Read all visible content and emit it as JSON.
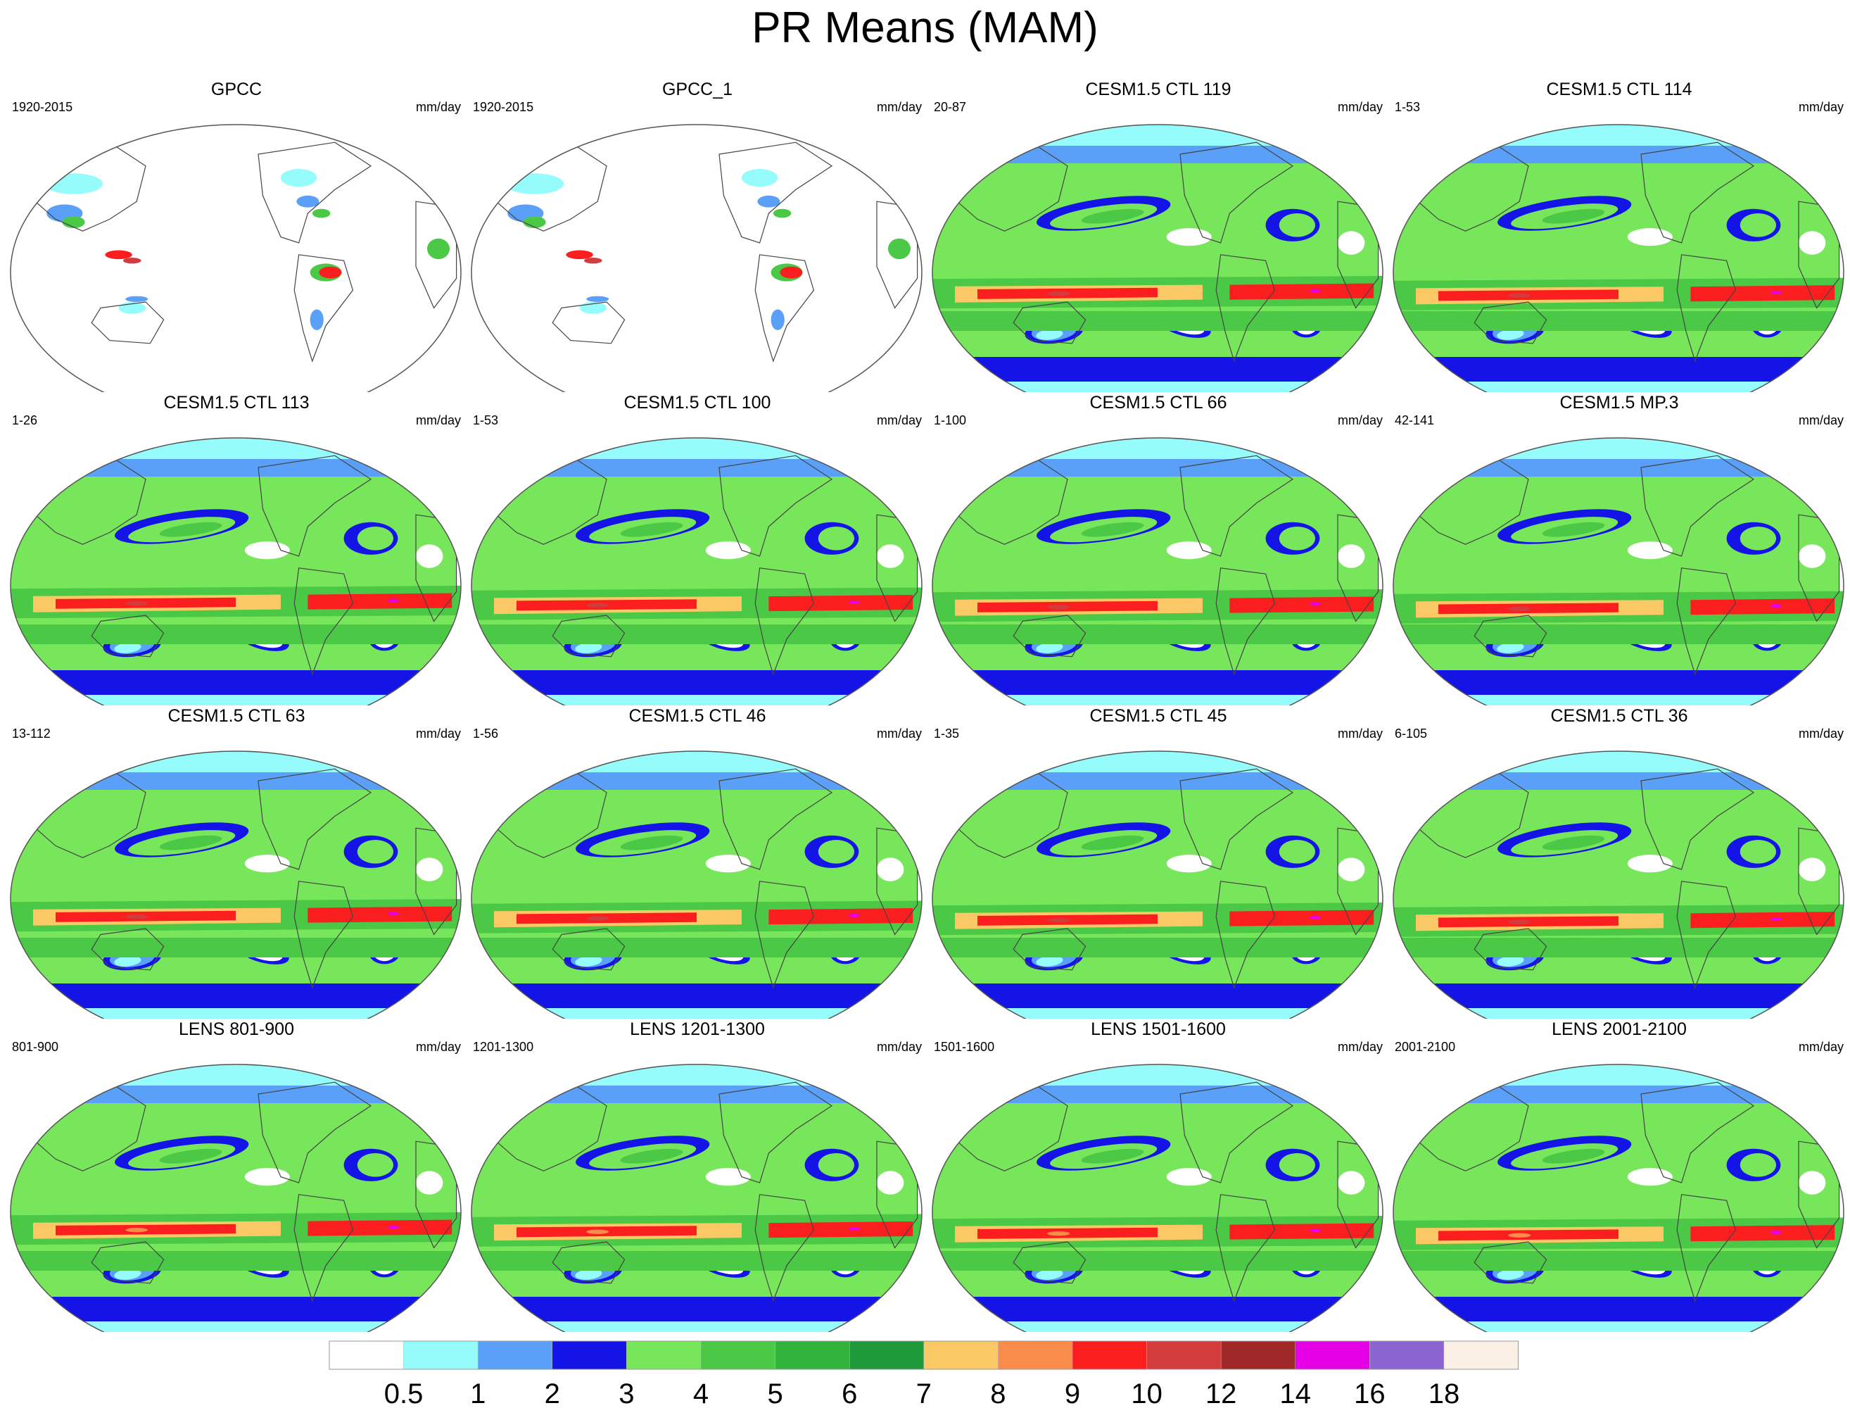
{
  "title": "PR Means (MAM)",
  "panels": [
    {
      "title": "GPCC",
      "years": "1920-2015",
      "units": "mm/day",
      "kind": "obs"
    },
    {
      "title": "GPCC_1",
      "years": "1920-2015",
      "units": "mm/day",
      "kind": "obs"
    },
    {
      "title": "CESM1.5 CTL 119",
      "years": "20-87",
      "units": "mm/day",
      "kind": "model"
    },
    {
      "title": "CESM1.5 CTL 114",
      "years": "1-53",
      "units": "mm/day",
      "kind": "model"
    },
    {
      "title": "CESM1.5 CTL 113",
      "years": "1-26",
      "units": "mm/day",
      "kind": "model"
    },
    {
      "title": "CESM1.5 CTL 100",
      "years": "1-53",
      "units": "mm/day",
      "kind": "model"
    },
    {
      "title": "CESM1.5 CTL 66",
      "years": "1-100",
      "units": "mm/day",
      "kind": "model"
    },
    {
      "title": "CESM1.5 MP.3",
      "years": "42-141",
      "units": "mm/day",
      "kind": "model"
    },
    {
      "title": "CESM1.5 CTL 63",
      "years": "13-112",
      "units": "mm/day",
      "kind": "model"
    },
    {
      "title": "CESM1.5 CTL 46",
      "years": "1-56",
      "units": "mm/day",
      "kind": "model"
    },
    {
      "title": "CESM1.5 CTL 45",
      "years": "1-35",
      "units": "mm/day",
      "kind": "model"
    },
    {
      "title": "CESM1.5 CTL 36",
      "years": "6-105",
      "units": "mm/day",
      "kind": "model"
    },
    {
      "title": "LENS 801-900",
      "years": "801-900",
      "units": "mm/day",
      "kind": "lens"
    },
    {
      "title": "LENS 1201-1300",
      "years": "1201-1300",
      "units": "mm/day",
      "kind": "lens"
    },
    {
      "title": "LENS 1501-1600",
      "years": "1501-1600",
      "units": "mm/day",
      "kind": "lens"
    },
    {
      "title": "LENS 2001-2100",
      "years": "2001-2100",
      "units": "mm/day",
      "kind": "lens"
    }
  ],
  "colorbar": {
    "colors": [
      "#ffffff",
      "#96fbfb",
      "#5aa0f8",
      "#1414e6",
      "#78e65a",
      "#4bc846",
      "#32b43c",
      "#1f9a3a",
      "#fac864",
      "#fa8c4b",
      "#fa1e1e",
      "#d23c3c",
      "#a02828",
      "#e600e6",
      "#8c64d2",
      "#faf0e6"
    ],
    "labels": [
      "0.5",
      "1",
      "2",
      "3",
      "4",
      "5",
      "6",
      "7",
      "8",
      "9",
      "10",
      "12",
      "14",
      "16",
      "18"
    ]
  }
}
